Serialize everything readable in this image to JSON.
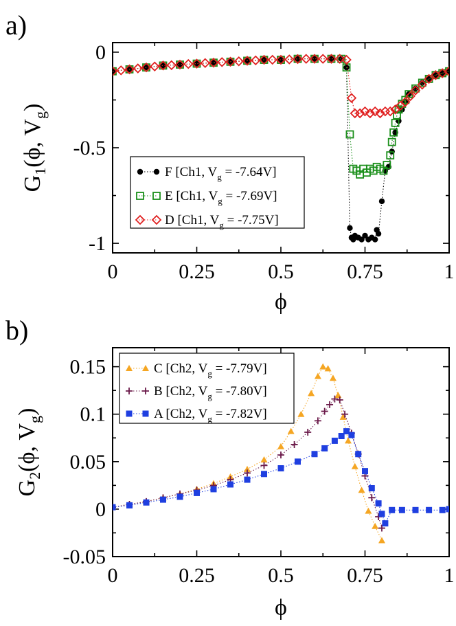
{
  "chart_data": [
    {
      "type": "scatter",
      "panel_label": "a)",
      "xlabel": "ϕ",
      "ylabel": {
        "main": "G",
        "sub": "1",
        "args": "(ϕ, V",
        "args_sub": "g",
        "close": ")"
      },
      "xlim": [
        0,
        1
      ],
      "ylim": [
        -1.05,
        0.05
      ],
      "xticks": [
        "0",
        "0.25",
        "0.5",
        "0.75",
        "1"
      ],
      "xtick_values": [
        0,
        0.25,
        0.5,
        0.75,
        1
      ],
      "yticks": [
        "0",
        "-0.5",
        "-1"
      ],
      "ytick_values": [
        0,
        -0.5,
        -1
      ],
      "legend_position": "lower-left",
      "series": [
        {
          "name": {
            "pre": "F [Ch1, V",
            "sub": "g",
            "post": " = -7.64V]"
          },
          "marker": "filled-circle",
          "color": "#000000",
          "line": "dotted",
          "x": [
            0,
            0.05,
            0.1,
            0.15,
            0.2,
            0.25,
            0.3,
            0.35,
            0.4,
            0.45,
            0.5,
            0.55,
            0.6,
            0.65,
            0.68,
            0.695,
            0.705,
            0.71,
            0.715,
            0.72,
            0.73,
            0.74,
            0.75,
            0.76,
            0.77,
            0.78,
            0.785,
            0.79,
            0.8,
            0.81,
            0.82,
            0.83,
            0.84,
            0.85,
            0.86,
            0.87,
            0.88,
            0.9,
            0.92,
            0.94,
            0.96,
            0.98,
            1.0
          ],
          "y": [
            -0.1,
            -0.09,
            -0.08,
            -0.07,
            -0.065,
            -0.06,
            -0.055,
            -0.05,
            -0.045,
            -0.04,
            -0.04,
            -0.035,
            -0.035,
            -0.035,
            -0.035,
            -0.08,
            -0.92,
            -0.97,
            -0.98,
            -0.96,
            -0.97,
            -0.98,
            -0.96,
            -0.98,
            -0.97,
            -0.98,
            -0.93,
            -0.95,
            -0.78,
            -0.62,
            -0.6,
            -0.52,
            -0.42,
            -0.36,
            -0.3,
            -0.26,
            -0.22,
            -0.19,
            -0.16,
            -0.14,
            -0.12,
            -0.11,
            -0.1
          ]
        },
        {
          "name": {
            "pre": "E [Ch1, V",
            "sub": "g",
            "post": " = -7.69V]"
          },
          "marker": "open-square",
          "color": "#1a8f1a",
          "line": "dotted",
          "x": [
            0,
            0.05,
            0.1,
            0.15,
            0.2,
            0.25,
            0.3,
            0.35,
            0.4,
            0.45,
            0.5,
            0.55,
            0.6,
            0.65,
            0.68,
            0.695,
            0.705,
            0.715,
            0.725,
            0.735,
            0.745,
            0.755,
            0.765,
            0.775,
            0.785,
            0.795,
            0.805,
            0.815,
            0.825,
            0.83,
            0.835,
            0.84,
            0.845,
            0.85,
            0.86,
            0.87,
            0.88,
            0.9,
            0.92,
            0.94,
            0.96,
            0.98,
            1.0
          ],
          "y": [
            -0.1,
            -0.09,
            -0.08,
            -0.07,
            -0.065,
            -0.06,
            -0.055,
            -0.05,
            -0.045,
            -0.04,
            -0.04,
            -0.035,
            -0.035,
            -0.035,
            -0.035,
            -0.08,
            -0.43,
            -0.61,
            -0.62,
            -0.64,
            -0.61,
            -0.63,
            -0.61,
            -0.62,
            -0.6,
            -0.61,
            -0.62,
            -0.59,
            -0.54,
            -0.47,
            -0.42,
            -0.37,
            -0.33,
            -0.3,
            -0.27,
            -0.25,
            -0.22,
            -0.19,
            -0.16,
            -0.14,
            -0.12,
            -0.11,
            -0.1
          ]
        },
        {
          "name": {
            "pre": "D [Ch1, V",
            "sub": "g",
            "post": " = -7.75V]"
          },
          "marker": "open-diamond",
          "color": "#e02020",
          "line": "dotted",
          "x": [
            0,
            0.025,
            0.05,
            0.075,
            0.1,
            0.125,
            0.15,
            0.175,
            0.2,
            0.225,
            0.25,
            0.275,
            0.3,
            0.325,
            0.35,
            0.375,
            0.4,
            0.425,
            0.45,
            0.475,
            0.5,
            0.525,
            0.55,
            0.575,
            0.6,
            0.625,
            0.65,
            0.675,
            0.695,
            0.71,
            0.72,
            0.735,
            0.75,
            0.765,
            0.78,
            0.795,
            0.81,
            0.825,
            0.84,
            0.855,
            0.87,
            0.885,
            0.9,
            0.92,
            0.94,
            0.96,
            0.98,
            1.0
          ],
          "y": [
            -0.1,
            -0.095,
            -0.09,
            -0.085,
            -0.08,
            -0.075,
            -0.07,
            -0.068,
            -0.065,
            -0.062,
            -0.06,
            -0.057,
            -0.055,
            -0.052,
            -0.05,
            -0.048,
            -0.045,
            -0.043,
            -0.04,
            -0.04,
            -0.04,
            -0.038,
            -0.036,
            -0.035,
            -0.035,
            -0.035,
            -0.035,
            -0.035,
            -0.04,
            -0.24,
            -0.32,
            -0.32,
            -0.31,
            -0.32,
            -0.31,
            -0.32,
            -0.31,
            -0.31,
            -0.3,
            -0.28,
            -0.26,
            -0.23,
            -0.2,
            -0.17,
            -0.14,
            -0.12,
            -0.11,
            -0.1
          ]
        }
      ]
    },
    {
      "type": "scatter",
      "panel_label": "b)",
      "xlabel": "ϕ",
      "ylabel": {
        "main": "G",
        "sub": "2",
        "args": "(ϕ, V",
        "args_sub": "g",
        "close": ")"
      },
      "xlim": [
        0,
        1
      ],
      "ylim": [
        -0.05,
        0.17
      ],
      "xticks": [
        "0",
        "0.25",
        "0.5",
        "0.75",
        "1"
      ],
      "xtick_values": [
        0,
        0.25,
        0.5,
        0.75,
        1
      ],
      "yticks": [
        "0.15",
        "0.1",
        "0.05",
        "0",
        "-0.05"
      ],
      "ytick_values": [
        0.15,
        0.1,
        0.05,
        0,
        -0.05
      ],
      "legend_position": "top-left",
      "series": [
        {
          "name": {
            "pre": "C [Ch2, V",
            "sub": "g",
            "post": " = -7.79V]"
          },
          "marker": "filled-triangle",
          "color": "#f5a623",
          "line": "dotted",
          "x": [
            0,
            0.05,
            0.1,
            0.15,
            0.2,
            0.25,
            0.3,
            0.35,
            0.4,
            0.45,
            0.5,
            0.53,
            0.56,
            0.59,
            0.61,
            0.625,
            0.64,
            0.655,
            0.67,
            0.685,
            0.7,
            0.72,
            0.74,
            0.76,
            0.78,
            0.8
          ],
          "y": [
            0.002,
            0.005,
            0.008,
            0.012,
            0.016,
            0.021,
            0.027,
            0.034,
            0.042,
            0.052,
            0.066,
            0.082,
            0.1,
            0.122,
            0.14,
            0.15,
            0.148,
            0.138,
            0.12,
            0.097,
            0.072,
            0.045,
            0.02,
            -0.002,
            -0.018,
            -0.033
          ]
        },
        {
          "name": {
            "pre": "B [Ch2, V",
            "sub": "g",
            "post": " = -7.80V]"
          },
          "marker": "plus",
          "color": "#6b1a4a",
          "line": "dotted",
          "x": [
            0,
            0.05,
            0.1,
            0.15,
            0.2,
            0.25,
            0.3,
            0.35,
            0.4,
            0.45,
            0.5,
            0.54,
            0.58,
            0.61,
            0.63,
            0.645,
            0.66,
            0.675,
            0.69,
            0.71,
            0.73,
            0.75,
            0.77,
            0.79,
            0.8
          ],
          "y": [
            0.002,
            0.005,
            0.008,
            0.012,
            0.016,
            0.02,
            0.025,
            0.031,
            0.038,
            0.046,
            0.057,
            0.068,
            0.081,
            0.093,
            0.103,
            0.11,
            0.116,
            0.115,
            0.1,
            0.08,
            0.058,
            0.035,
            0.012,
            -0.008,
            -0.02
          ]
        },
        {
          "name": {
            "pre": "A [Ch2, V",
            "sub": "g",
            "post": " = -7.82V]"
          },
          "marker": "filled-square",
          "color": "#1f3fe0",
          "line": "dotted",
          "x": [
            0,
            0.05,
            0.1,
            0.15,
            0.2,
            0.25,
            0.3,
            0.35,
            0.4,
            0.45,
            0.5,
            0.55,
            0.6,
            0.63,
            0.66,
            0.68,
            0.695,
            0.71,
            0.73,
            0.75,
            0.77,
            0.79,
            0.8,
            0.81,
            0.83,
            0.86,
            0.9,
            0.94,
            0.98,
            1.0
          ],
          "y": [
            0.002,
            0.004,
            0.007,
            0.01,
            0.013,
            0.017,
            0.021,
            0.026,
            0.031,
            0.037,
            0.043,
            0.05,
            0.058,
            0.064,
            0.072,
            0.077,
            0.082,
            0.078,
            0.058,
            0.04,
            0.022,
            0.006,
            -0.005,
            -0.015,
            -0.001,
            -0.001,
            -0.001,
            -0.001,
            -0.001,
            0
          ]
        }
      ]
    }
  ]
}
